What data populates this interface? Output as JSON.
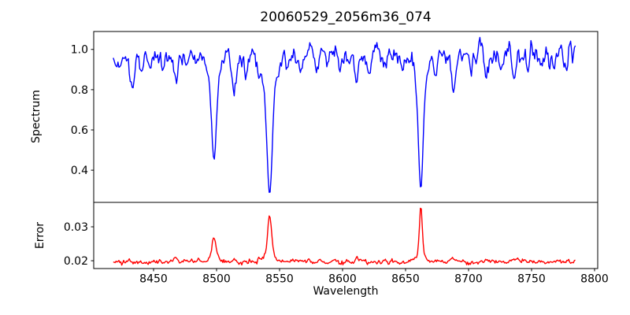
{
  "figure": {
    "title": "20060529_2056m36_074",
    "background": "#ffffff"
  },
  "colors": {
    "spectrum_line": "#0000ff",
    "error_line": "#ff0000",
    "frame": "#000000",
    "text": "#000000"
  },
  "chart_data": [
    {
      "type": "line",
      "panel": "spectrum",
      "title": "20060529_2056m36_074",
      "ylabel": "Spectrum",
      "series_name": "spectrum",
      "line_color": "#0000ff",
      "xlim": [
        8402.5,
        8802.5
      ],
      "ylim": [
        0.24,
        1.089
      ],
      "yticks": [
        1.0,
        0.8,
        0.6,
        0.4
      ],
      "yticklabels": [
        "1.0",
        "0.8",
        "0.6",
        "0.4"
      ],
      "x_start": 8418,
      "x_end": 8785,
      "x_step": 0.75,
      "continuum": 0.97,
      "left_rolloff_start": 8435,
      "left_rolloff_slope": 0.0015,
      "noise_sigma": 0.02,
      "noise_sigma_red_end": 0.026,
      "red_end_start": 8690,
      "noise_ar": 0.45,
      "seed": 1337,
      "grid": false,
      "legend": "none",
      "absorption_lines": [
        {
          "center": 8424.0,
          "depth": 0.05,
          "sigma": 1.0
        },
        {
          "center": 8433.0,
          "depth": 0.16,
          "sigma": 1.4
        },
        {
          "center": 8440.0,
          "depth": 0.09,
          "sigma": 1.2
        },
        {
          "center": 8447.0,
          "depth": 0.06,
          "sigma": 1.0
        },
        {
          "center": 8457.0,
          "depth": 0.07,
          "sigma": 1.1
        },
        {
          "center": 8468.0,
          "depth": 0.13,
          "sigma": 1.4
        },
        {
          "center": 8476.0,
          "depth": 0.06,
          "sigma": 1.0
        },
        {
          "center": 8484.0,
          "depth": 0.07,
          "sigma": 1.0
        },
        {
          "center": 8498.0,
          "depth": 0.4,
          "sigma": 1.8,
          "wing_depth": 0.12,
          "wing_sigma": 4.5
        },
        {
          "center": 8514.0,
          "depth": 0.18,
          "sigma": 1.4
        },
        {
          "center": 8523.0,
          "depth": 0.08,
          "sigma": 1.1
        },
        {
          "center": 8542.1,
          "depth": 0.48,
          "sigma": 1.9,
          "wing_depth": 0.22,
          "wing_sigma": 5.0
        },
        {
          "center": 8556.0,
          "depth": 0.06,
          "sigma": 1.0
        },
        {
          "center": 8567.0,
          "depth": 0.06,
          "sigma": 1.0
        },
        {
          "center": 8579.0,
          "depth": 0.09,
          "sigma": 1.2
        },
        {
          "center": 8588.0,
          "depth": 0.06,
          "sigma": 1.0
        },
        {
          "center": 8598.0,
          "depth": 0.08,
          "sigma": 1.1
        },
        {
          "center": 8611.0,
          "depth": 0.11,
          "sigma": 1.3
        },
        {
          "center": 8621.0,
          "depth": 0.1,
          "sigma": 1.2
        },
        {
          "center": 8634.0,
          "depth": 0.06,
          "sigma": 1.0
        },
        {
          "center": 8648.0,
          "depth": 0.09,
          "sigma": 1.1
        },
        {
          "center": 8662.1,
          "depth": 0.47,
          "sigma": 1.7,
          "wing_depth": 0.19,
          "wing_sigma": 4.2
        },
        {
          "center": 8674.0,
          "depth": 0.1,
          "sigma": 1.1
        },
        {
          "center": 8688.0,
          "depth": 0.19,
          "sigma": 1.4
        },
        {
          "center": 8702.0,
          "depth": 0.07,
          "sigma": 1.0
        },
        {
          "center": 8713.0,
          "depth": 0.08,
          "sigma": 1.1
        },
        {
          "center": 8726.0,
          "depth": 0.06,
          "sigma": 1.0
        },
        {
          "center": 8736.0,
          "depth": 0.08,
          "sigma": 1.1
        },
        {
          "center": 8747.0,
          "depth": 0.06,
          "sigma": 1.0
        },
        {
          "center": 8757.0,
          "depth": 0.07,
          "sigma": 1.0
        },
        {
          "center": 8768.0,
          "depth": 0.06,
          "sigma": 1.0
        },
        {
          "center": 8777.0,
          "depth": 0.06,
          "sigma": 1.0
        }
      ]
    },
    {
      "type": "line",
      "panel": "error",
      "ylabel": "Error",
      "xlabel": "Wavelength",
      "series_name": "error",
      "line_color": "#ff0000",
      "xlim": [
        8402.5,
        8802.5
      ],
      "ylim": [
        0.0177,
        0.0372
      ],
      "yticks": [
        0.03,
        0.02
      ],
      "yticklabels": [
        "0.03",
        "0.02"
      ],
      "xticks": [
        8450,
        8500,
        8550,
        8600,
        8650,
        8700,
        8750,
        8800
      ],
      "xticklabels": [
        "8450",
        "8500",
        "8550",
        "8600",
        "8650",
        "8700",
        "8750",
        "8800"
      ],
      "x_start": 8418,
      "x_end": 8785,
      "x_step": 0.75,
      "baseline": 0.0197,
      "noise_sigma": 0.00035,
      "noise_ar": 0.4,
      "seed": 2024,
      "grid": false,
      "legend": "none",
      "error_peaks": [
        {
          "center": 8430.0,
          "amp": 0.0007,
          "sigma": 2.0
        },
        {
          "center": 8467.0,
          "amp": 0.0016,
          "sigma": 1.5
        },
        {
          "center": 8498.0,
          "amp": 0.0055,
          "sigma": 1.7,
          "wing_amp": 0.0012,
          "wing_sigma": 4.0
        },
        {
          "center": 8514.0,
          "amp": 0.0008,
          "sigma": 1.5
        },
        {
          "center": 8542.1,
          "amp": 0.0105,
          "sigma": 1.5,
          "wing_amp": 0.003,
          "wing_sigma": 4.0
        },
        {
          "center": 8611.0,
          "amp": 0.0006,
          "sigma": 1.5
        },
        {
          "center": 8662.1,
          "amp": 0.014,
          "sigma": 1.1,
          "wing_amp": 0.0025,
          "wing_sigma": 3.0
        },
        {
          "center": 8688.0,
          "amp": 0.001,
          "sigma": 1.5
        },
        {
          "center": 8736.0,
          "amp": 0.0005,
          "sigma": 1.5
        }
      ]
    }
  ]
}
